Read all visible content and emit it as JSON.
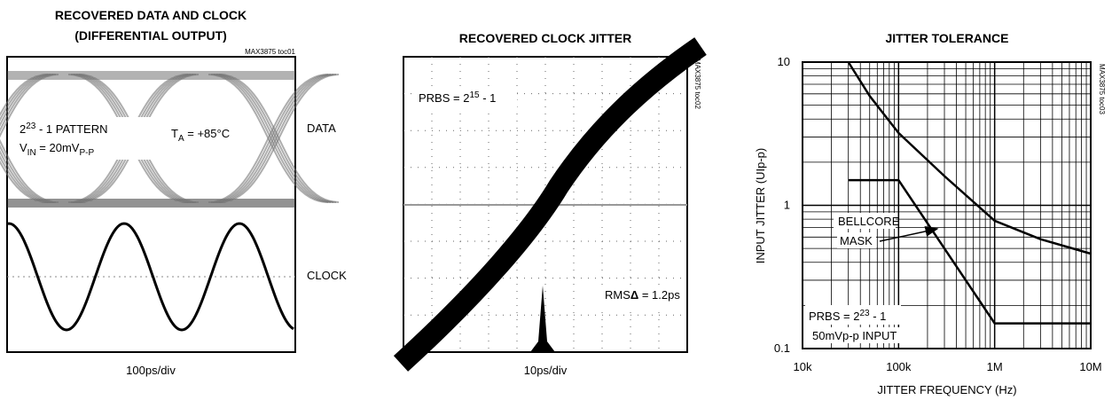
{
  "chart_data": [
    {
      "type": "eye",
      "title": [
        "RECOVERED DATA AND CLOCK",
        "(DIFFERENTIAL OUTPUT)"
      ],
      "tag": "MAX3875 toc01",
      "xlabel": "100ps/div",
      "labels": [
        "DATA",
        "CLOCK"
      ],
      "annotations": {
        "pattern": [
          "2",
          "23",
          " - 1 PATTERN"
        ],
        "vin": [
          "V",
          "IN",
          " = 20mV",
          "P-P"
        ],
        "ta": [
          "T",
          "A",
          " = +85°C"
        ]
      }
    },
    {
      "type": "scope",
      "title": "RECOVERED CLOCK JITTER",
      "tag": "MAX3875 toc02",
      "xlabel": "10ps/div",
      "annotations": {
        "prbs": [
          "PRBS = 2",
          "15",
          " - 1"
        ],
        "rms": [
          "RMS",
          "Δ",
          " = 1.2ps"
        ]
      }
    },
    {
      "type": "line",
      "title": "JITTER TOLERANCE",
      "tag": "MAX3875 toc03",
      "xlabel": "JITTER FREQUENCY (Hz)",
      "ylabel": "INPUT JITTER (UIp-p)",
      "xscale": "log",
      "yscale": "log",
      "xlim": [
        10000,
        10000000
      ],
      "ylim": [
        0.1,
        10
      ],
      "xticks": [
        {
          "value": 10000,
          "label": "10k"
        },
        {
          "value": 100000,
          "label": "100k"
        },
        {
          "value": 1000000,
          "label": "1M"
        },
        {
          "value": 10000000,
          "label": "10M"
        }
      ],
      "yticks": [
        0.1,
        1,
        10
      ],
      "grid": true,
      "minor_grid": true,
      "series": [
        {
          "color": "#000000",
          "x": [
            30000,
            50000,
            100000,
            300000,
            1000000,
            3000000,
            10000000
          ],
          "values": [
            10,
            5.8,
            3.2,
            1.6,
            0.78,
            0.58,
            0.46
          ]
        },
        {
          "color": "#000000",
          "x": [
            30000,
            100000,
            1000000,
            10000000
          ],
          "values": [
            1.5,
            1.5,
            0.15,
            0.15
          ]
        }
      ],
      "annotations": {
        "mask": [
          "BELLCORE",
          "MASK"
        ],
        "prbs": [
          "PRBS = 2",
          "23",
          " - 1"
        ],
        "input": "50mVp-p INPUT"
      }
    }
  ]
}
